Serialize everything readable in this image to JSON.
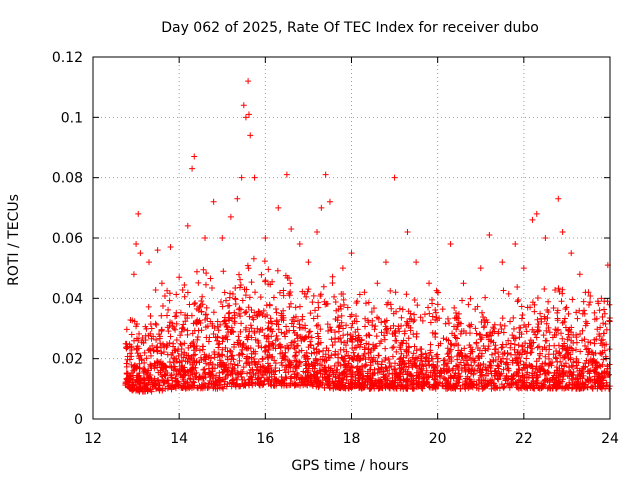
{
  "chart_data": {
    "type": "scatter",
    "title": "Day 062 of 2025, Rate Of TEC Index for receiver dubo",
    "xlabel": "GPS time / hours",
    "ylabel": "ROTI / TECUs",
    "xlim": [
      12,
      24
    ],
    "ylim": [
      0,
      0.12
    ],
    "x_ticks": [
      12,
      14,
      16,
      18,
      20,
      22,
      24
    ],
    "y_ticks": [
      0,
      0.02,
      0.04,
      0.06,
      0.08,
      0.1,
      0.12
    ],
    "x_tick_labels": [
      "12",
      "14",
      "16",
      "18",
      "20",
      "22",
      "24"
    ],
    "y_tick_labels": [
      "0",
      "0.02",
      "0.04",
      "0.06",
      "0.08",
      "0.1",
      "0.12"
    ],
    "grid": true,
    "marker": "plus",
    "series": [
      {
        "color": "#ff0000",
        "points": [
          [
            12.8,
            0.024
          ],
          [
            12.9,
            0.028
          ],
          [
            12.95,
            0.048
          ],
          [
            13.0,
            0.058
          ],
          [
            13.05,
            0.068
          ],
          [
            13.1,
            0.055
          ],
          [
            13.3,
            0.052
          ],
          [
            13.5,
            0.056
          ],
          [
            13.6,
            0.045
          ],
          [
            13.8,
            0.057
          ],
          [
            14.0,
            0.047
          ],
          [
            14.2,
            0.064
          ],
          [
            14.3,
            0.083
          ],
          [
            14.35,
            0.087
          ],
          [
            14.6,
            0.06
          ],
          [
            14.8,
            0.072
          ],
          [
            15.0,
            0.06
          ],
          [
            15.2,
            0.067
          ],
          [
            15.35,
            0.073
          ],
          [
            15.45,
            0.08
          ],
          [
            15.5,
            0.104
          ],
          [
            15.55,
            0.1
          ],
          [
            15.6,
            0.112
          ],
          [
            15.62,
            0.101
          ],
          [
            15.65,
            0.094
          ],
          [
            15.75,
            0.08
          ],
          [
            16.0,
            0.06
          ],
          [
            16.3,
            0.07
          ],
          [
            16.5,
            0.081
          ],
          [
            16.6,
            0.063
          ],
          [
            16.8,
            0.058
          ],
          [
            17.0,
            0.052
          ],
          [
            17.2,
            0.062
          ],
          [
            17.3,
            0.07
          ],
          [
            17.4,
            0.081
          ],
          [
            17.5,
            0.072
          ],
          [
            17.8,
            0.05
          ],
          [
            18.0,
            0.055
          ],
          [
            18.3,
            0.042
          ],
          [
            18.6,
            0.045
          ],
          [
            18.8,
            0.052
          ],
          [
            19.0,
            0.08
          ],
          [
            19.3,
            0.062
          ],
          [
            19.5,
            0.052
          ],
          [
            19.8,
            0.045
          ],
          [
            20.0,
            0.042
          ],
          [
            20.3,
            0.058
          ],
          [
            20.6,
            0.045
          ],
          [
            21.0,
            0.05
          ],
          [
            21.2,
            0.061
          ],
          [
            21.5,
            0.052
          ],
          [
            21.8,
            0.058
          ],
          [
            22.0,
            0.05
          ],
          [
            22.2,
            0.066
          ],
          [
            22.3,
            0.068
          ],
          [
            22.5,
            0.06
          ],
          [
            22.8,
            0.073
          ],
          [
            22.9,
            0.062
          ],
          [
            23.1,
            0.055
          ],
          [
            23.3,
            0.048
          ],
          [
            23.5,
            0.042
          ],
          [
            23.8,
            0.04
          ],
          [
            23.95,
            0.051
          ]
        ],
        "density_profile": {
          "hours": [
            12.75,
            13.0,
            13.5,
            14.0,
            14.5,
            15.0,
            15.5,
            16.0,
            16.5,
            17.0,
            17.5,
            18.0,
            18.5,
            19.0,
            19.5,
            20.0,
            20.5,
            21.0,
            21.5,
            22.0,
            22.5,
            23.0,
            23.5,
            24.0
          ],
          "typical_min": [
            0.006,
            0.005,
            0.005,
            0.006,
            0.006,
            0.006,
            0.007,
            0.007,
            0.007,
            0.007,
            0.006,
            0.006,
            0.006,
            0.006,
            0.006,
            0.006,
            0.006,
            0.006,
            0.006,
            0.006,
            0.006,
            0.006,
            0.006,
            0.006
          ],
          "typical_max": [
            0.03,
            0.035,
            0.04,
            0.045,
            0.05,
            0.05,
            0.055,
            0.05,
            0.05,
            0.045,
            0.045,
            0.042,
            0.04,
            0.042,
            0.04,
            0.04,
            0.04,
            0.042,
            0.04,
            0.042,
            0.045,
            0.045,
            0.04,
            0.04
          ]
        }
      }
    ]
  }
}
